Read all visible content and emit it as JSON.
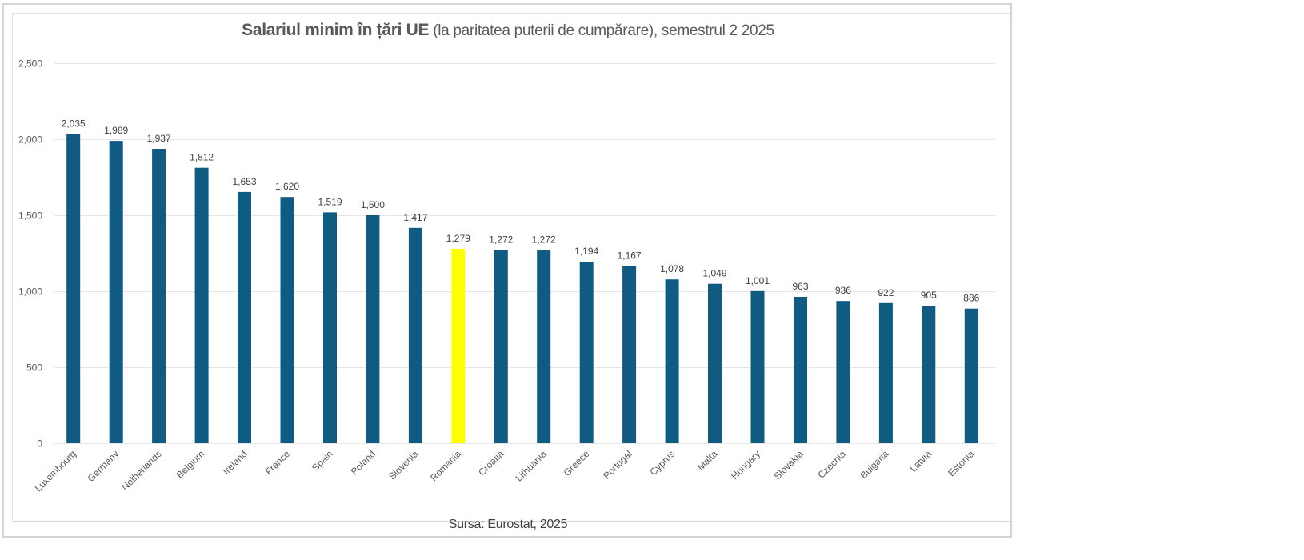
{
  "chart_data": {
    "type": "bar",
    "title_bold": "Salariul minim în țări UE",
    "title_rest": " (la paritatea puterii de cumpărare), semestrul 2 2025",
    "xlabel": "",
    "ylabel": "",
    "ylim": [
      0,
      2500
    ],
    "yticks": [
      0,
      500,
      1000,
      1500,
      2000,
      2500
    ],
    "ytick_labels": [
      "0",
      "500",
      "1,000",
      "1,500",
      "2,000",
      "2,500"
    ],
    "grid": true,
    "legend": "none",
    "categories": [
      "Luxembourg",
      "Germany",
      "Netherlands",
      "Belgium",
      "Ireland",
      "France",
      "Spain",
      "Poland",
      "Slovenia",
      "Romania",
      "Croatia",
      "Lithuania",
      "Greece",
      "Portugal",
      "Cyprus",
      "Malta",
      "Hungary",
      "Slovakia",
      "Czechia",
      "Bulgaria",
      "Latvia",
      "Estonia"
    ],
    "values": [
      2035,
      1989,
      1937,
      1812,
      1653,
      1620,
      1519,
      1500,
      1417,
      1279,
      1272,
      1272,
      1194,
      1167,
      1078,
      1049,
      1001,
      963,
      936,
      922,
      905,
      886
    ],
    "value_labels": [
      "2,035",
      "1,989",
      "1,937",
      "1,812",
      "1,653",
      "1,620",
      "1,519",
      "1,500",
      "1,417",
      "1,279",
      "1,272",
      "1,272",
      "1,194",
      "1,167",
      "1,078",
      "1,049",
      "1,001",
      "963",
      "936",
      "922",
      "905",
      "886"
    ],
    "highlight_category": "Romania",
    "colors": {
      "bar": "#0f5b82",
      "highlight": "#ffff00",
      "grid": "#e6e6e6"
    },
    "source": "Sursa: Eurostat, 2025"
  }
}
